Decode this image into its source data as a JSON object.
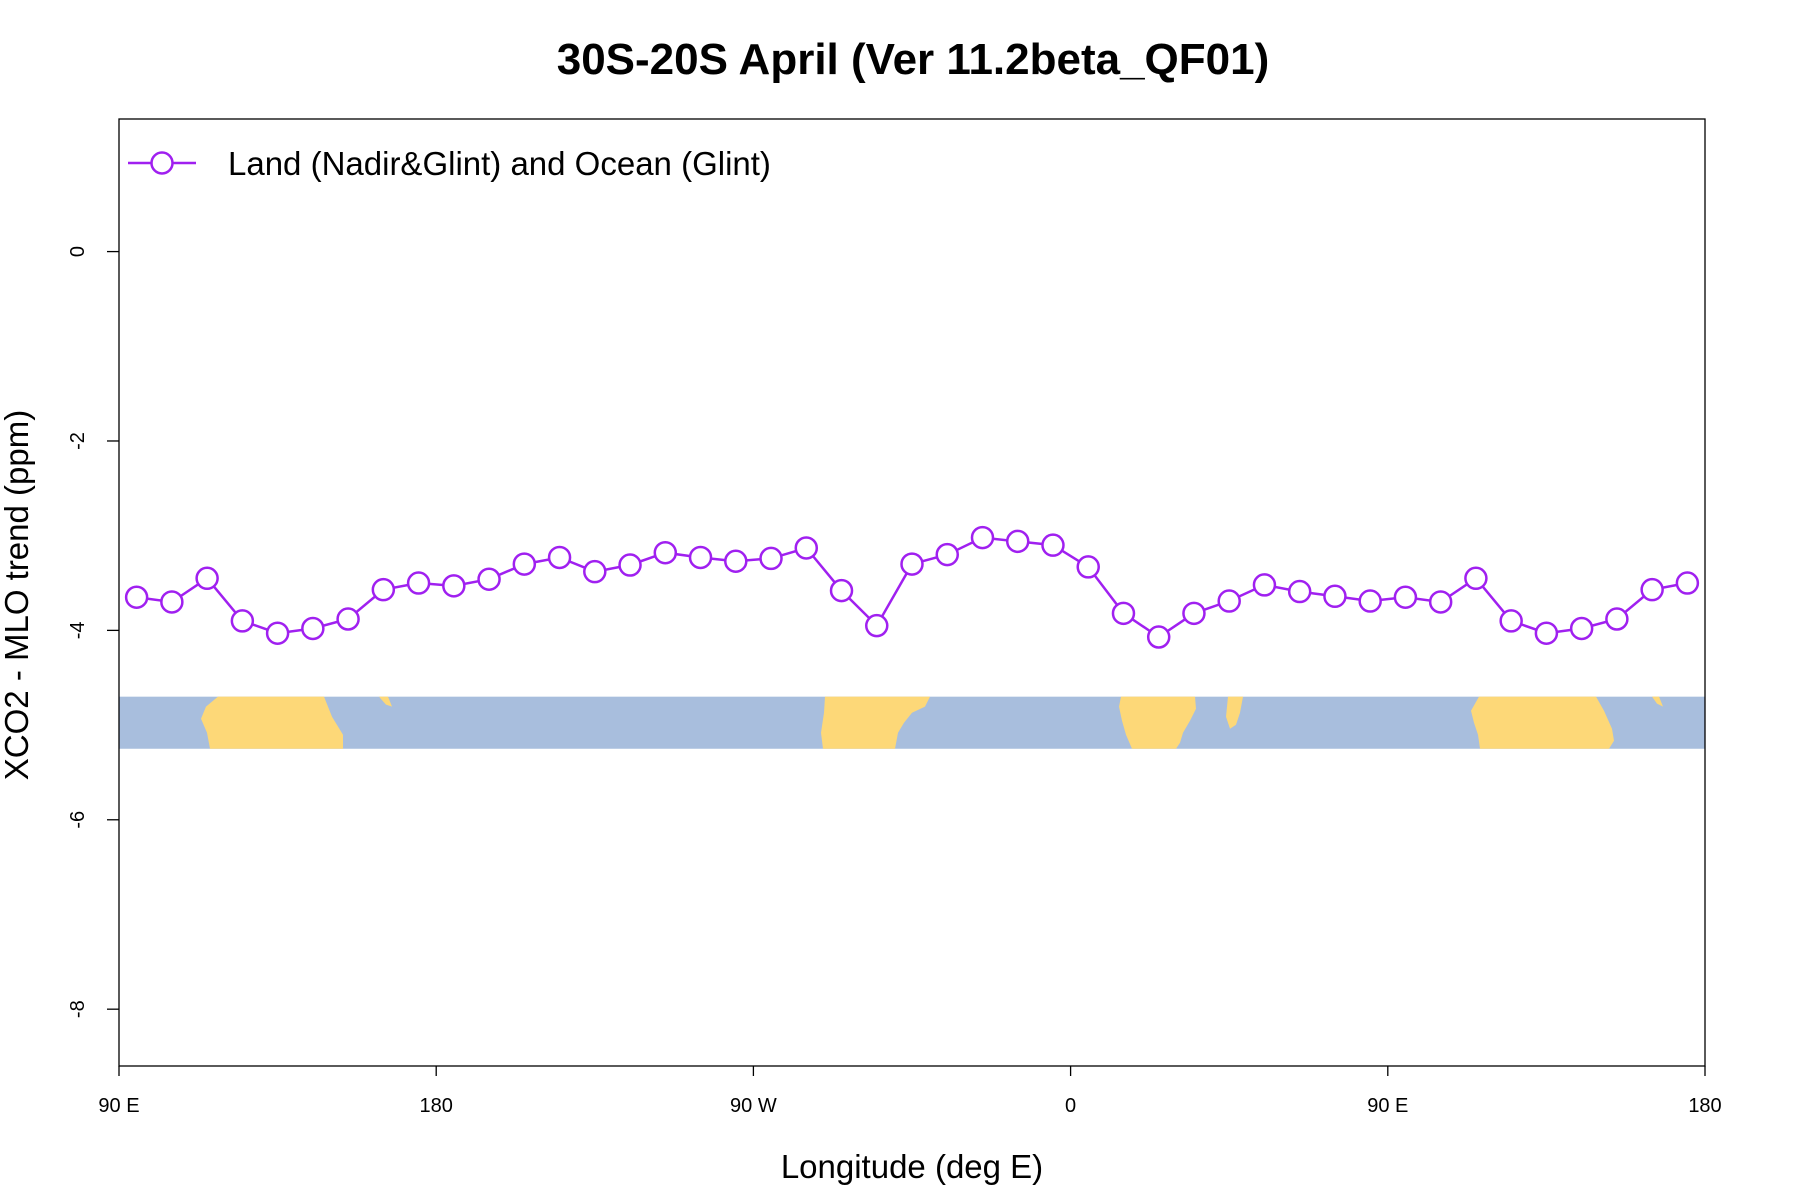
{
  "chart_data": {
    "type": "line",
    "title": "30S-20S April (Ver 11.2beta_QF01)",
    "xlabel": "Longitude (deg E)",
    "ylabel": "XCO2 - MLO trend (ppm)",
    "xlim": [
      90,
      540
    ],
    "ylim": [
      -8.6,
      1.4
    ],
    "x_ticks": [
      {
        "value": 90,
        "label": "90 E"
      },
      {
        "value": 180,
        "label": "180"
      },
      {
        "value": 270,
        "label": "90 W"
      },
      {
        "value": 360,
        "label": "0"
      },
      {
        "value": 450,
        "label": "90 E"
      },
      {
        "value": 540,
        "label": "180"
      }
    ],
    "y_ticks": [
      {
        "value": 0,
        "label": "0"
      },
      {
        "value": -2,
        "label": "-2"
      },
      {
        "value": -4,
        "label": "-4"
      },
      {
        "value": -6,
        "label": "-6"
      },
      {
        "value": -8,
        "label": "-8"
      }
    ],
    "legend": {
      "position": "top-left",
      "entries": [
        "Land (Nadir&Glint) and Ocean (Glint)"
      ]
    },
    "grid": false,
    "colors": {
      "series": "#a020f0",
      "ocean": "#a8bedd",
      "land": "#fdd878"
    },
    "land_ocean_band": {
      "y_range": [
        -5.25,
        -4.7
      ]
    },
    "series": [
      {
        "name": "Land (Nadir&Glint) and Ocean (Glint)",
        "x": [
          95,
          105,
          115,
          125,
          135,
          145,
          155,
          165,
          175,
          185,
          195,
          205,
          215,
          225,
          235,
          245,
          255,
          265,
          275,
          285,
          295,
          305,
          315,
          325,
          335,
          345,
          355,
          365,
          375,
          385,
          395,
          405,
          415,
          425,
          435,
          445,
          455,
          465,
          475,
          485,
          495,
          505,
          515,
          525,
          535
        ],
        "y": [
          -3.65,
          -3.7,
          -3.45,
          -3.9,
          -4.03,
          -3.98,
          -3.88,
          -3.57,
          -3.5,
          -3.53,
          -3.46,
          -3.3,
          -3.23,
          -3.38,
          -3.31,
          -3.18,
          -3.23,
          -3.27,
          -3.24,
          -3.13,
          -3.58,
          -3.95,
          -3.3,
          -3.2,
          -3.02,
          -3.06,
          -3.1,
          -3.33,
          -3.82,
          -4.07,
          -3.82,
          -3.69,
          -3.52,
          -3.59,
          -3.64,
          -3.69,
          -3.65,
          -3.7,
          -3.45,
          -3.9,
          -4.03,
          -3.98,
          -3.88,
          -3.57,
          -3.5
        ]
      }
    ]
  }
}
